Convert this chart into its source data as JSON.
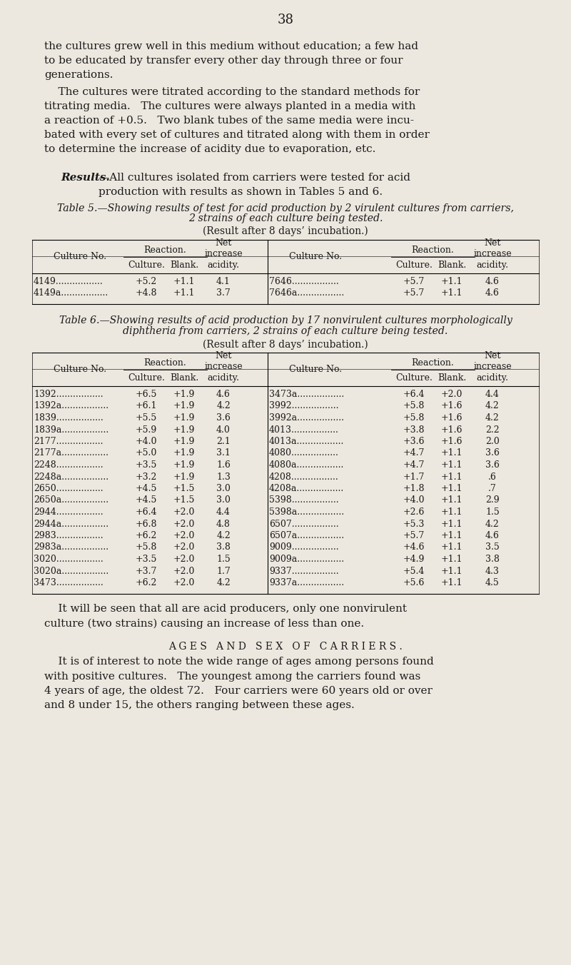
{
  "bg_color": "#EDE8DF",
  "text_color": "#1a1a1a",
  "page_number": "38",
  "para1": "the cultures grew well in this medium without education; a few had\nto be educated by transfer every other day through three or four\ngenerations.",
  "para2_indent": "    The cultures were titrated according to the standard methods for\ntitrating media.   The cultures were always planted in a media with\na reaction of +0.5.   Two blank tubes of the same media were incu-\nbated with every set of cultures and titrated along with them in order\nto determine the increase of acidity due to evaporation, etc.",
  "para3_italic": "Results.",
  "para3_rest": "—All cultures isolated from carriers were tested for acid\nproduction with results as shown in Tables 5 and 6.",
  "table5_title_line1": "Table 5.—Showing results of test for acid production by 2 virulent cultures from carriers,",
  "table5_title_line2": "2 strains of each culture being tested.",
  "table5_subtitle": "(Result after 8 days’ incubation.)",
  "table5_data": [
    [
      "4149",
      "+5.2",
      "+1.1",
      "4.1",
      "7646",
      "+5.7",
      "+1.1",
      "4.6"
    ],
    [
      "4149a",
      "+4.8",
      "+1.1",
      "3.7",
      "7646a",
      "+5.7",
      "+1.1",
      "4.6"
    ]
  ],
  "table6_title_line1": "Table 6.—Showing results of acid production by 17 nonvirulent cultures morphologically",
  "table6_title_line2": "diphtheria from carriers, 2 strains of each culture being tested.",
  "table6_subtitle": "(Result after 8 days’ incubation.)",
  "table6_data": [
    [
      "1392",
      "+6.5",
      "+1.9",
      "4.6",
      "3473a",
      "+6.4",
      "+2.0",
      "4.4"
    ],
    [
      "1392a",
      "+6.1",
      "+1.9",
      "4.2",
      "3992",
      "+5.8",
      "+1.6",
      "4.2"
    ],
    [
      "1839",
      "+5.5",
      "+1.9",
      "3.6",
      "3992a",
      "+5.8",
      "+1.6",
      "4.2"
    ],
    [
      "1839a",
      "+5.9",
      "+1.9",
      "4.0",
      "4013",
      "+3.8",
      "+1.6",
      "2.2"
    ],
    [
      "2177",
      "+4.0",
      "+1.9",
      "2.1",
      "4013a",
      "+3.6",
      "+1.6",
      "2.0"
    ],
    [
      "2177a",
      "+5.0",
      "+1.9",
      "3.1",
      "4080",
      "+4.7",
      "+1.1",
      "3.6"
    ],
    [
      "2248",
      "+3.5",
      "+1.9",
      "1.6",
      "4080a",
      "+4.7",
      "+1.1",
      "3.6"
    ],
    [
      "2248a",
      "+3.2",
      "+1.9",
      "1.3",
      "4208",
      "+1.7",
      "+1.1",
      ".6"
    ],
    [
      "2650",
      "+4.5",
      "+1.5",
      "3.0",
      "4208a",
      "+1.8",
      "+1.1",
      ".7"
    ],
    [
      "2650a",
      "+4.5",
      "+1.5",
      "3.0",
      "5398",
      "+4.0",
      "+1.1",
      "2.9"
    ],
    [
      "2944",
      "+6.4",
      "+2.0",
      "4.4",
      "5398a",
      "+2.6",
      "+1.1",
      "1.5"
    ],
    [
      "2944a",
      "+6.8",
      "+2.0",
      "4.8",
      "6507",
      "+5.3",
      "+1.1",
      "4.2"
    ],
    [
      "2983",
      "+6.2",
      "+2.0",
      "4.2",
      "6507a",
      "+5.7",
      "+1.1",
      "4.6"
    ],
    [
      "2983a",
      "+5.8",
      "+2.0",
      "3.8",
      "9009",
      "+4.6",
      "+1.1",
      "3.5"
    ],
    [
      "3020",
      "+3.5",
      "+2.0",
      "1.5",
      "9009a",
      "+4.9",
      "+1.1",
      "3.8"
    ],
    [
      "3020a",
      "+3.7",
      "+2.0",
      "1.7",
      "9337",
      "+5.4",
      "+1.1",
      "4.3"
    ],
    [
      "3473",
      "+6.2",
      "+2.0",
      "4.2",
      "9337a",
      "+5.6",
      "+1.1",
      "4.5"
    ]
  ],
  "para4": "    It will be seen that all are acid producers, only one nonvirulent\nculture (two strains) causing an increase of less than one.",
  "section_header": "Ages and Sex of Carriers.",
  "para5": "    It is of interest to note the wide range of ages among persons found\nwith positive cultures.   The youngest among the carriers found was\n4 years of age, the oldest 72.   Four carriers were 60 years old or over\nand 8 under 15, the others ranging between these ages."
}
